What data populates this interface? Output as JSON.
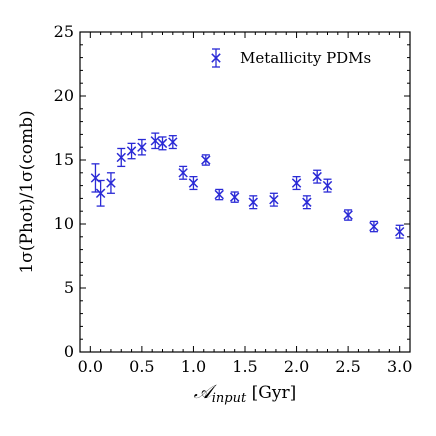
{
  "chart_data": {
    "type": "scatter",
    "title": "",
    "xlabel": "𝒜_input [Gyr]",
    "xlabel_main": "𝒜",
    "xlabel_sub": "input",
    "xlabel_unit": " [Gyr]",
    "ylabel": "1σ(Phot)/1σ(comb)",
    "xlim": [
      -0.1,
      3.1
    ],
    "ylim": [
      0,
      25
    ],
    "xticks": [
      0.0,
      0.5,
      1.0,
      1.5,
      2.0,
      2.5,
      3.0
    ],
    "xtick_labels": [
      "0.0",
      "0.5",
      "1.0",
      "1.5",
      "2.0",
      "2.5",
      "3.0"
    ],
    "yticks": [
      0,
      5,
      10,
      15,
      20,
      25
    ],
    "ytick_labels": [
      "0",
      "5",
      "10",
      "15",
      "20",
      "25"
    ],
    "grid": false,
    "legend_position": "top-right",
    "colors": {
      "series": "#2a2ad6",
      "axis": "#000000"
    },
    "series": [
      {
        "name": "Metallicity PDMs",
        "marker": "x",
        "points": [
          {
            "x": 0.05,
            "y": 13.6,
            "err": 1.1
          },
          {
            "x": 0.1,
            "y": 12.4,
            "err": 1.0
          },
          {
            "x": 0.2,
            "y": 13.2,
            "err": 0.8
          },
          {
            "x": 0.3,
            "y": 15.2,
            "err": 0.7
          },
          {
            "x": 0.4,
            "y": 15.7,
            "err": 0.6
          },
          {
            "x": 0.5,
            "y": 16.0,
            "err": 0.6
          },
          {
            "x": 0.63,
            "y": 16.5,
            "err": 0.6
          },
          {
            "x": 0.7,
            "y": 16.3,
            "err": 0.5
          },
          {
            "x": 0.8,
            "y": 16.4,
            "err": 0.5
          },
          {
            "x": 0.9,
            "y": 14.0,
            "err": 0.5
          },
          {
            "x": 1.0,
            "y": 13.2,
            "err": 0.5
          },
          {
            "x": 1.12,
            "y": 15.0,
            "err": 0.4
          },
          {
            "x": 1.25,
            "y": 12.3,
            "err": 0.4
          },
          {
            "x": 1.4,
            "y": 12.1,
            "err": 0.4
          },
          {
            "x": 1.58,
            "y": 11.7,
            "err": 0.5
          },
          {
            "x": 1.78,
            "y": 11.9,
            "err": 0.5
          },
          {
            "x": 2.0,
            "y": 13.2,
            "err": 0.5
          },
          {
            "x": 2.1,
            "y": 11.7,
            "err": 0.5
          },
          {
            "x": 2.2,
            "y": 13.7,
            "err": 0.5
          },
          {
            "x": 2.3,
            "y": 13.0,
            "err": 0.5
          },
          {
            "x": 2.5,
            "y": 10.7,
            "err": 0.4
          },
          {
            "x": 2.75,
            "y": 9.8,
            "err": 0.4
          },
          {
            "x": 3.0,
            "y": 9.4,
            "err": 0.5
          }
        ]
      }
    ]
  }
}
